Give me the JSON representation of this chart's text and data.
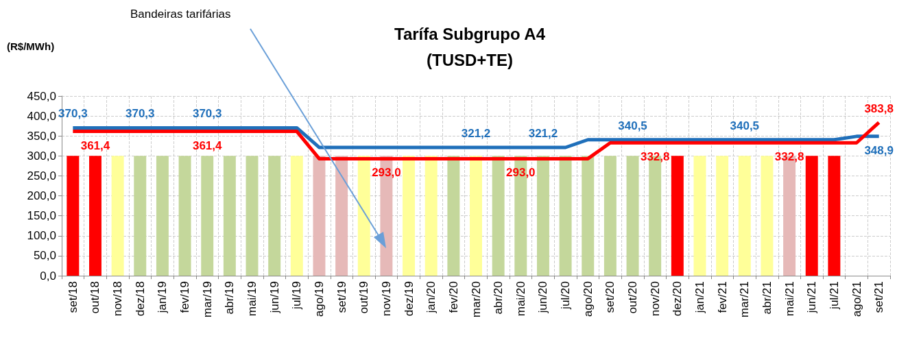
{
  "chart_data": {
    "type": "bar",
    "title": "Tarífa Subgrupo A4\n(TUSD+TE)",
    "ylabel": "(R$/MWh)",
    "annotations": [
      "Bandeiras tarifárias"
    ],
    "categories": [
      "set/18",
      "out/18",
      "nov/18",
      "dez/18",
      "jan/19",
      "fev/19",
      "mar/19",
      "abr/19",
      "mai/19",
      "jun/19",
      "jul/19",
      "ago/19",
      "set/19",
      "out/19",
      "nov/19",
      "dez/19",
      "jan/20",
      "fev/20",
      "mar/20",
      "abr/20",
      "mai/20",
      "jun/20",
      "jul/20",
      "ago/20",
      "set/20",
      "out/20",
      "nov/20",
      "dez/20",
      "jan/21",
      "fev/21",
      "mar/21",
      "abr/21",
      "mai/21",
      "jun/21",
      "jul/21",
      "ago/21",
      "set/21"
    ],
    "ylim": [
      0,
      450
    ],
    "yticks": [
      {
        "value": 0,
        "label": "0,0"
      },
      {
        "value": 50,
        "label": "50,0"
      },
      {
        "value": 100,
        "label": "100,0"
      },
      {
        "value": 150,
        "label": "150,0"
      },
      {
        "value": 200,
        "label": "200,0"
      },
      {
        "value": 250,
        "label": "250,0"
      },
      {
        "value": 300,
        "label": "300,0"
      },
      {
        "value": 350,
        "label": "350,0"
      },
      {
        "value": 400,
        "label": "400,0"
      },
      {
        "value": 450,
        "label": "450,0"
      }
    ],
    "grid": true,
    "series": [
      {
        "values": [
          300,
          300,
          300,
          300,
          300,
          300,
          300,
          300,
          300,
          300,
          300,
          300,
          300,
          300,
          300,
          300,
          300,
          300,
          300,
          300,
          300,
          300,
          300,
          300,
          300,
          300,
          300,
          300,
          300,
          300,
          300,
          300,
          300,
          300,
          300,
          null,
          null
        ],
        "colors": [
          "#ff0000",
          "#ff0000",
          "#ffff99",
          "#c4d79b",
          "#c4d79b",
          "#c4d79b",
          "#c4d79b",
          "#c4d79b",
          "#c4d79b",
          "#c4d79b",
          "#ffff99",
          "#e6b9b8",
          "#e6b9b8",
          "#ffff99",
          "#e6b9b8",
          "#ffff99",
          "#ffff99",
          "#c4d79b",
          "#ffff99",
          "#c4d79b",
          "#c4d79b",
          "#c4d79b",
          "#c4d79b",
          "#c4d79b",
          "#c4d79b",
          "#c4d79b",
          "#c4d79b",
          "#ff0000",
          "#ffff99",
          "#ffff99",
          "#ffff99",
          "#ffff99",
          "#e6b9b8",
          "#ff0000",
          "#ff0000",
          null,
          null
        ]
      },
      {
        "type": "line",
        "color": "#1f6fba",
        "values": [
          370.3,
          370.3,
          370.3,
          370.3,
          370.3,
          370.3,
          370.3,
          370.3,
          370.3,
          370.3,
          370.3,
          321.2,
          321.2,
          321.2,
          321.2,
          321.2,
          321.2,
          321.2,
          321.2,
          321.2,
          321.2,
          321.2,
          321.2,
          340.5,
          340.5,
          340.5,
          340.5,
          340.5,
          340.5,
          340.5,
          340.5,
          340.5,
          340.5,
          340.5,
          340.5,
          348.9,
          348.9
        ],
        "value_labels": [
          "370,3",
          null,
          null,
          "370,3",
          null,
          null,
          "370,3",
          null,
          null,
          null,
          null,
          null,
          null,
          null,
          null,
          null,
          null,
          null,
          "321,2",
          null,
          null,
          "321,2",
          null,
          null,
          null,
          "340,5",
          null,
          null,
          null,
          null,
          "340,5",
          null,
          null,
          null,
          null,
          null,
          "348,9"
        ]
      },
      {
        "type": "line",
        "color": "#ff0000",
        "values": [
          361.4,
          361.4,
          361.4,
          361.4,
          361.4,
          361.4,
          361.4,
          361.4,
          361.4,
          361.4,
          361.4,
          293.0,
          293.0,
          293.0,
          293.0,
          293.0,
          293.0,
          293.0,
          293.0,
          293.0,
          293.0,
          293.0,
          293.0,
          293.0,
          332.8,
          332.8,
          332.8,
          332.8,
          332.8,
          332.8,
          332.8,
          332.8,
          332.8,
          332.8,
          332.8,
          332.8,
          383.8
        ],
        "value_labels": [
          null,
          "361,4",
          null,
          null,
          null,
          null,
          "361,4",
          null,
          null,
          null,
          null,
          null,
          null,
          null,
          "293,0",
          null,
          null,
          null,
          null,
          null,
          "293,0",
          null,
          null,
          null,
          null,
          null,
          "332,8",
          null,
          null,
          null,
          null,
          null,
          "332,8",
          null,
          null,
          null,
          "383,8"
        ]
      }
    ]
  }
}
